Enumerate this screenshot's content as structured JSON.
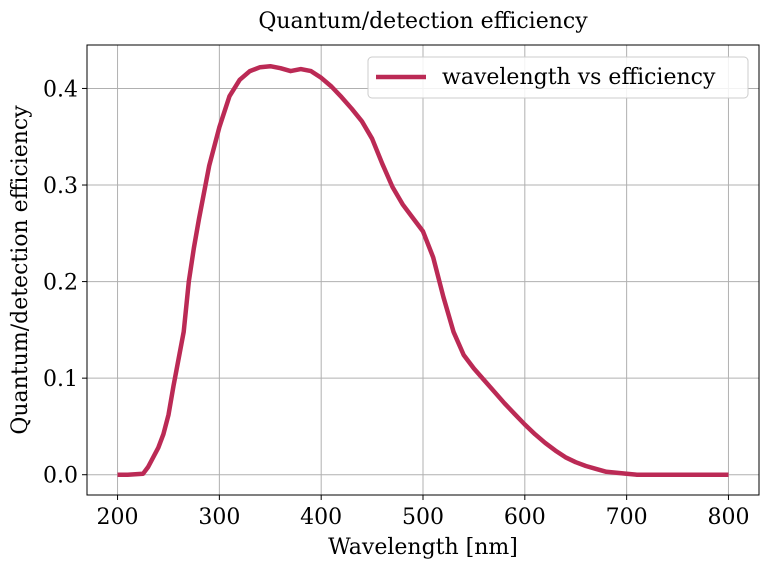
{
  "chart_data": {
    "type": "line",
    "title": "Quantum/detection efficiency",
    "xlabel": "Wavelength [nm]",
    "ylabel": "Quantum/detection efficiency",
    "xlim": [
      170,
      830
    ],
    "ylim": [
      -0.021,
      0.445
    ],
    "xticks": [
      200,
      300,
      400,
      500,
      600,
      700,
      800
    ],
    "yticks": [
      0.0,
      0.1,
      0.2,
      0.3,
      0.4
    ],
    "xtick_labels": [
      "200",
      "300",
      "400",
      "500",
      "600",
      "700",
      "800"
    ],
    "ytick_labels": [
      "0.0",
      "0.1",
      "0.2",
      "0.3",
      "0.4"
    ],
    "grid": true,
    "legend_position": "top-right",
    "series": [
      {
        "name": "wavelength vs efficiency",
        "color": "#bb2a55",
        "x": [
          200,
          210,
          225,
          230,
          240,
          245,
          250,
          255,
          260,
          265,
          270,
          275,
          280,
          290,
          300,
          310,
          320,
          330,
          340,
          350,
          360,
          370,
          380,
          390,
          400,
          410,
          420,
          430,
          440,
          450,
          460,
          470,
          480,
          490,
          500,
          510,
          520,
          530,
          540,
          550,
          560,
          570,
          580,
          590,
          600,
          610,
          620,
          630,
          640,
          650,
          660,
          670,
          680,
          690,
          700,
          710,
          720,
          740,
          760,
          780,
          800
        ],
        "y": [
          0.0,
          0.0,
          0.001,
          0.008,
          0.028,
          0.042,
          0.062,
          0.092,
          0.12,
          0.148,
          0.2,
          0.235,
          0.265,
          0.32,
          0.36,
          0.392,
          0.409,
          0.418,
          0.422,
          0.423,
          0.421,
          0.418,
          0.42,
          0.418,
          0.411,
          0.402,
          0.391,
          0.379,
          0.366,
          0.348,
          0.322,
          0.298,
          0.28,
          0.266,
          0.252,
          0.225,
          0.184,
          0.148,
          0.124,
          0.11,
          0.098,
          0.086,
          0.074,
          0.063,
          0.052,
          0.042,
          0.033,
          0.025,
          0.018,
          0.013,
          0.009,
          0.006,
          0.003,
          0.002,
          0.001,
          0.0,
          0.0,
          0.0,
          0.0,
          0.0,
          0.0
        ]
      }
    ]
  }
}
